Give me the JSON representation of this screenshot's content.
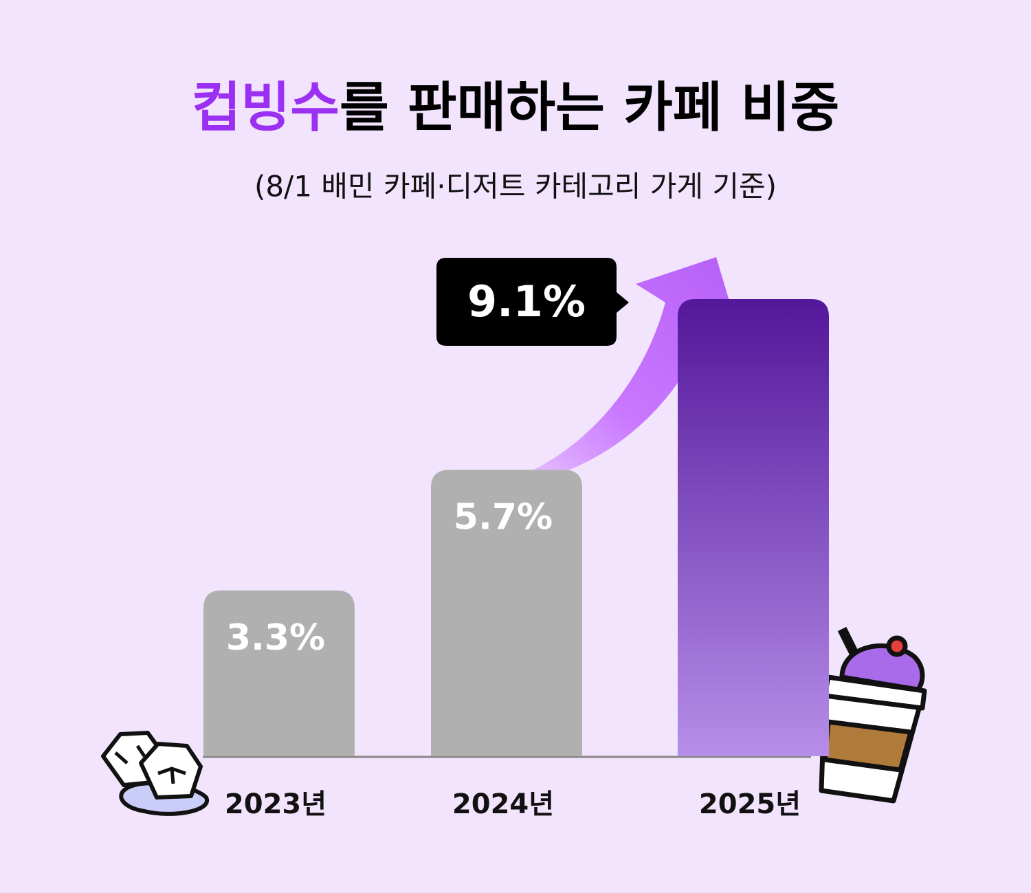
{
  "chart_data": {
    "type": "bar",
    "title": [
      {
        "text": "컵빙수",
        "color": "#9b30f2"
      },
      {
        "text": "를 판매하는 카페 비중",
        "color": "#000000"
      }
    ],
    "subtitle": "(8/1 배민 카페·디저트 카테고리 가게 기준)",
    "categories": [
      "2023년",
      "2024년",
      "2025년"
    ],
    "values": [
      3.3,
      5.7,
      9.1
    ],
    "value_labels": [
      "3.3%",
      "5.7%",
      "9.1%"
    ],
    "colors": [
      [
        "#b0b0b0",
        "#b0b0b0"
      ],
      [
        "#b0b0b0",
        "#b0b0b0"
      ],
      [
        "#53179a",
        "#b68ee9"
      ]
    ]
  }
}
